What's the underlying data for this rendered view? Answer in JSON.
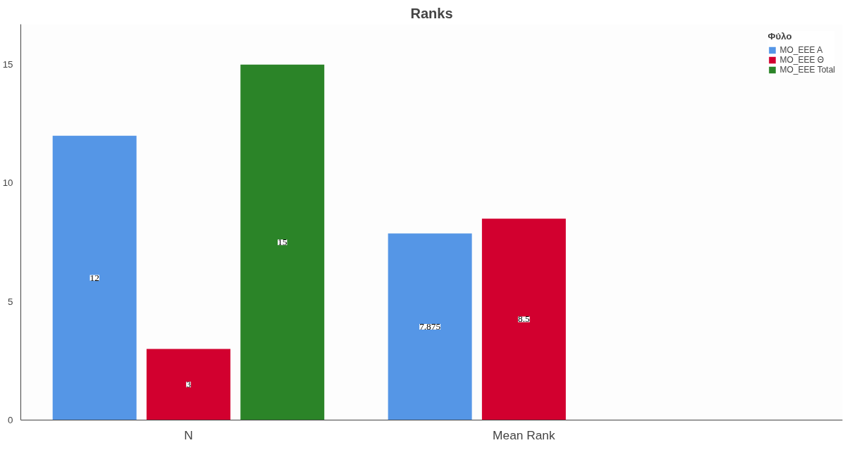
{
  "chart_data": {
    "type": "bar",
    "title": "Ranks",
    "legend_title": "Φύλο",
    "categories": [
      "N",
      "Mean Rank"
    ],
    "series": [
      {
        "name": "MO_EEE A",
        "color": "#5596e6",
        "values": [
          12,
          7.875
        ]
      },
      {
        "name": "MO_EEE Θ",
        "color": "#d2002f",
        "values": [
          3,
          8.5
        ]
      },
      {
        "name": "MO_EEE Total",
        "color": "#2b8428",
        "values": [
          15,
          null
        ]
      }
    ],
    "ylim": [
      0,
      16.7
    ],
    "yticks": [
      0,
      5,
      10,
      15
    ],
    "grid": false,
    "legend": "top right",
    "data_labels": true
  }
}
